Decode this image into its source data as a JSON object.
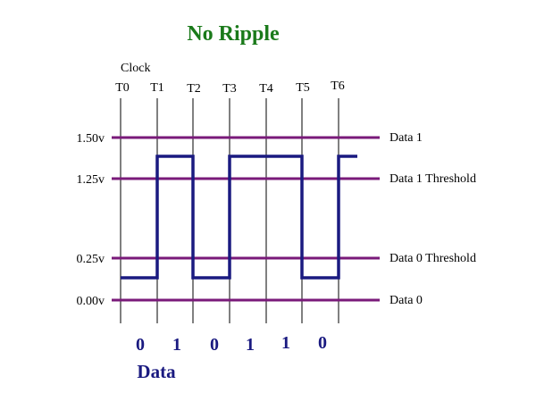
{
  "title": "No Ripple",
  "clock_label": "Clock",
  "clock_ticks": [
    "T0",
    "T1",
    "T2",
    "T3",
    "T4",
    "T5",
    "T6"
  ],
  "voltage_levels": [
    {
      "value": "1.50v",
      "name": "Data 1"
    },
    {
      "value": "1.25v",
      "name": "Data 1 Threshold"
    },
    {
      "value": "0.25v",
      "name": "Data 0 Threshold"
    },
    {
      "value": "0.00v",
      "name": "Data 0"
    }
  ],
  "bits": [
    "0",
    "1",
    "0",
    "1",
    "1",
    "0"
  ],
  "data_label": "Data",
  "colors": {
    "title": "#1a7a1a",
    "level_line": "#7a1a7a",
    "signal": "#1a1a80",
    "bits": "#1a1a80",
    "clock_line": "#000000",
    "text": "#000000"
  }
}
